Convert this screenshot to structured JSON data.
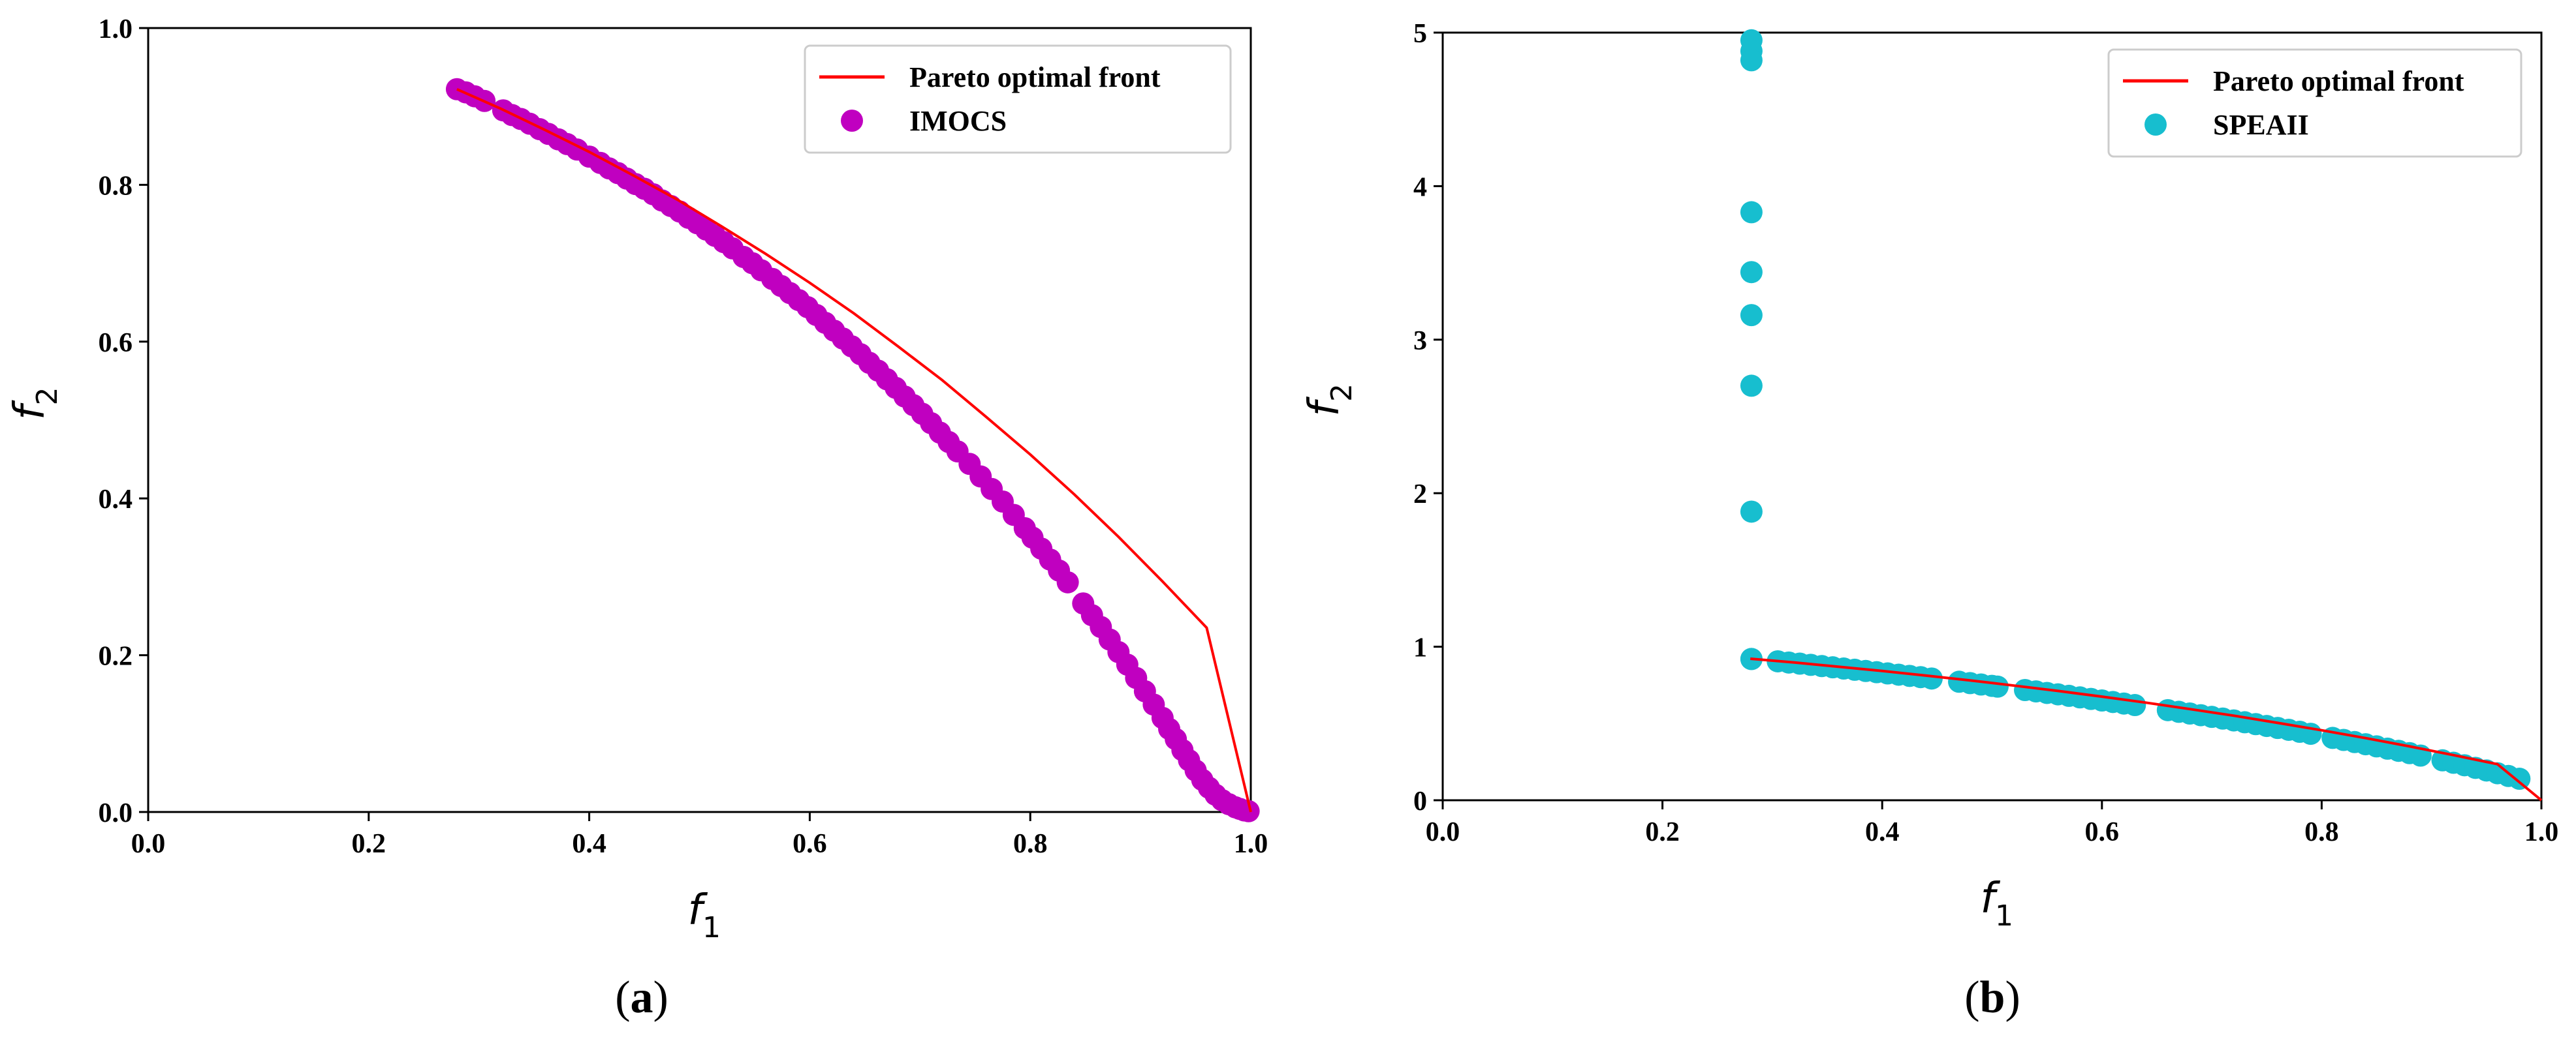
{
  "chart_data": [
    {
      "panel": "(a)",
      "panel_label": "a",
      "type": "scatter",
      "xlabel": "f1",
      "ylabel": "f2",
      "xlim": [
        0.0,
        1.0
      ],
      "ylim": [
        0.0,
        1.0
      ],
      "xticks": [
        "0.0",
        "0.2",
        "0.4",
        "0.6",
        "0.8",
        "1.0"
      ],
      "yticks": [
        "0.0",
        "0.2",
        "0.4",
        "0.6",
        "0.8",
        "1.0"
      ],
      "grid": false,
      "legend_position": "upper-right",
      "series": [
        {
          "name": "Pareto optimal front",
          "kind": "line",
          "color": "#ff0000",
          "x": [
            0.28,
            0.32,
            0.36,
            0.4,
            0.44,
            0.48,
            0.52,
            0.56,
            0.6,
            0.64,
            0.68,
            0.72,
            0.76,
            0.8,
            0.84,
            0.88,
            0.92,
            0.96,
            1.0
          ],
          "y": [
            0.922,
            0.897,
            0.87,
            0.842,
            0.812,
            0.781,
            0.747,
            0.712,
            0.675,
            0.636,
            0.594,
            0.551,
            0.504,
            0.456,
            0.405,
            0.351,
            0.294,
            0.235,
            0.0
          ]
        },
        {
          "name": "IMOCS",
          "kind": "points",
          "color": "#c000c0",
          "x": [
            0.28,
            0.288,
            0.296,
            0.305,
            0.322,
            0.33,
            0.338,
            0.346,
            0.355,
            0.363,
            0.372,
            0.38,
            0.389,
            0.4,
            0.41,
            0.418,
            0.426,
            0.434,
            0.442,
            0.45,
            0.458,
            0.466,
            0.474,
            0.482,
            0.49,
            0.498,
            0.506,
            0.514,
            0.522,
            0.53,
            0.54,
            0.548,
            0.556,
            0.566,
            0.574,
            0.582,
            0.59,
            0.598,
            0.606,
            0.614,
            0.622,
            0.63,
            0.638,
            0.646,
            0.654,
            0.662,
            0.67,
            0.678,
            0.686,
            0.694,
            0.702,
            0.71,
            0.718,
            0.726,
            0.734,
            0.745,
            0.755,
            0.765,
            0.775,
            0.785,
            0.795,
            0.802,
            0.81,
            0.818,
            0.826,
            0.834,
            0.848,
            0.856,
            0.864,
            0.872,
            0.88,
            0.888,
            0.896,
            0.904,
            0.912,
            0.92,
            0.926,
            0.932,
            0.938,
            0.944,
            0.95,
            0.956,
            0.962,
            0.968,
            0.974,
            0.98,
            0.986,
            0.99,
            0.994,
            0.998
          ],
          "y": [
            0.922,
            0.918,
            0.913,
            0.907,
            0.895,
            0.889,
            0.884,
            0.878,
            0.871,
            0.865,
            0.858,
            0.852,
            0.845,
            0.836,
            0.828,
            0.821,
            0.815,
            0.808,
            0.801,
            0.795,
            0.788,
            0.78,
            0.773,
            0.766,
            0.758,
            0.751,
            0.743,
            0.735,
            0.727,
            0.719,
            0.708,
            0.7,
            0.691,
            0.68,
            0.671,
            0.662,
            0.653,
            0.644,
            0.634,
            0.624,
            0.614,
            0.604,
            0.594,
            0.584,
            0.573,
            0.563,
            0.552,
            0.541,
            0.53,
            0.519,
            0.508,
            0.496,
            0.484,
            0.472,
            0.46,
            0.444,
            0.428,
            0.412,
            0.396,
            0.379,
            0.362,
            0.35,
            0.336,
            0.322,
            0.308,
            0.293,
            0.266,
            0.251,
            0.236,
            0.22,
            0.204,
            0.188,
            0.171,
            0.154,
            0.137,
            0.12,
            0.106,
            0.093,
            0.079,
            0.066,
            0.053,
            0.041,
            0.031,
            0.022,
            0.015,
            0.01,
            0.006,
            0.004,
            0.002,
            0.001
          ]
        }
      ]
    },
    {
      "panel": "(b)",
      "panel_label": "b",
      "type": "scatter",
      "xlabel": "f1",
      "ylabel": "f2",
      "xlim": [
        0.0,
        1.0
      ],
      "ylim": [
        0,
        5
      ],
      "xticks": [
        "0.0",
        "0.2",
        "0.4",
        "0.6",
        "0.8",
        "1.0"
      ],
      "yticks": [
        "0",
        "1",
        "2",
        "3",
        "4",
        "5"
      ],
      "grid": false,
      "legend_position": "upper-right",
      "series": [
        {
          "name": "Pareto optimal front",
          "kind": "line",
          "color": "#ff0000",
          "x": [
            0.28,
            0.32,
            0.36,
            0.4,
            0.44,
            0.48,
            0.52,
            0.56,
            0.6,
            0.64,
            0.68,
            0.72,
            0.76,
            0.8,
            0.84,
            0.88,
            0.92,
            0.96,
            1.0
          ],
          "y": [
            0.922,
            0.897,
            0.87,
            0.842,
            0.812,
            0.781,
            0.747,
            0.712,
            0.675,
            0.636,
            0.594,
            0.551,
            0.504,
            0.456,
            0.405,
            0.351,
            0.294,
            0.235,
            0.0
          ]
        },
        {
          "name": "SPEAII",
          "kind": "points",
          "color": "#17becf",
          "x": [
            0.281,
            0.281,
            0.281,
            0.281,
            0.281,
            0.281,
            0.281,
            0.281,
            0.281,
            0.281,
            0.305,
            0.315,
            0.325,
            0.335,
            0.345,
            0.355,
            0.365,
            0.375,
            0.385,
            0.395,
            0.405,
            0.415,
            0.425,
            0.435,
            0.445,
            0.47,
            0.48,
            0.49,
            0.5,
            0.505,
            0.53,
            0.54,
            0.55,
            0.56,
            0.57,
            0.58,
            0.59,
            0.6,
            0.61,
            0.62,
            0.63,
            0.66,
            0.67,
            0.68,
            0.69,
            0.7,
            0.71,
            0.72,
            0.73,
            0.74,
            0.75,
            0.76,
            0.77,
            0.78,
            0.79,
            0.81,
            0.82,
            0.83,
            0.84,
            0.85,
            0.86,
            0.87,
            0.88,
            0.89,
            0.91,
            0.92,
            0.93,
            0.94,
            0.95,
            0.96,
            0.97,
            0.98
          ],
          "y": [
            4.95,
            4.88,
            4.82,
            3.83,
            3.44,
            3.16,
            2.7,
            1.88,
            0.92,
            0.92,
            0.905,
            0.897,
            0.89,
            0.882,
            0.874,
            0.866,
            0.858,
            0.85,
            0.842,
            0.834,
            0.826,
            0.818,
            0.81,
            0.802,
            0.793,
            0.772,
            0.763,
            0.754,
            0.745,
            0.74,
            0.718,
            0.709,
            0.699,
            0.69,
            0.68,
            0.67,
            0.66,
            0.65,
            0.64,
            0.63,
            0.62,
            0.587,
            0.576,
            0.565,
            0.554,
            0.543,
            0.532,
            0.52,
            0.508,
            0.496,
            0.484,
            0.471,
            0.459,
            0.446,
            0.433,
            0.406,
            0.393,
            0.379,
            0.365,
            0.351,
            0.336,
            0.322,
            0.307,
            0.291,
            0.26,
            0.244,
            0.228,
            0.211,
            0.194,
            0.176,
            0.158,
            0.14
          ]
        }
      ]
    }
  ]
}
